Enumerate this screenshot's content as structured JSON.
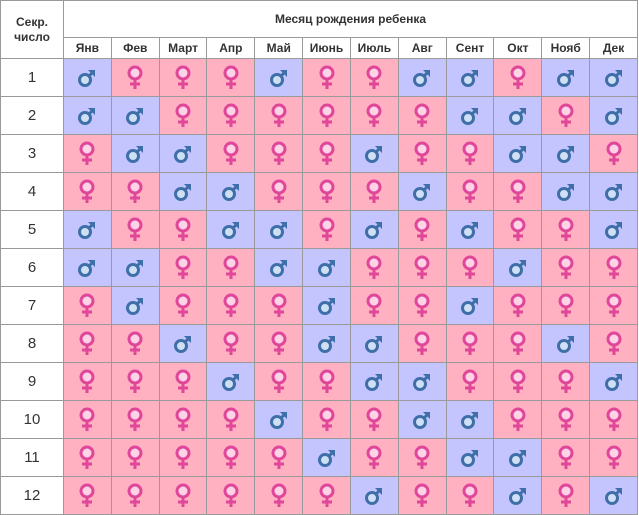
{
  "header": {
    "corner_line1": "Секр.",
    "corner_line2": "число",
    "group_title": "Месяц рождения ребенка"
  },
  "months": [
    "Янв",
    "Фев",
    "Март",
    "Апр",
    "Май",
    "Июнь",
    "Июль",
    "Авг",
    "Сент",
    "Окт",
    "Нояб",
    "Дек"
  ],
  "colors": {
    "girl_cell": "#ffb1c1",
    "boy_cell": "#c4c4ff",
    "female_icon": "#e0479a",
    "male_icon": "#3f6fa8"
  },
  "icons": {
    "girl": "female-symbol-icon",
    "boy": "male-symbol-icon"
  },
  "rows": [
    {
      "number": "1",
      "cells": [
        "b",
        "g",
        "g",
        "g",
        "b",
        "g",
        "g",
        "b",
        "b",
        "g",
        "b",
        "b"
      ]
    },
    {
      "number": "2",
      "cells": [
        "b",
        "b",
        "g",
        "g",
        "g",
        "g",
        "g",
        "g",
        "b",
        "b",
        "g",
        "b"
      ]
    },
    {
      "number": "3",
      "cells": [
        "g",
        "b",
        "b",
        "g",
        "g",
        "g",
        "b",
        "g",
        "g",
        "b",
        "b",
        "g"
      ]
    },
    {
      "number": "4",
      "cells": [
        "g",
        "g",
        "b",
        "b",
        "g",
        "g",
        "g",
        "b",
        "g",
        "g",
        "b",
        "b"
      ]
    },
    {
      "number": "5",
      "cells": [
        "b",
        "g",
        "g",
        "b",
        "b",
        "g",
        "b",
        "g",
        "b",
        "g",
        "g",
        "b"
      ]
    },
    {
      "number": "6",
      "cells": [
        "b",
        "b",
        "g",
        "g",
        "b",
        "b",
        "g",
        "g",
        "g",
        "b",
        "g",
        "g"
      ]
    },
    {
      "number": "7",
      "cells": [
        "g",
        "b",
        "g",
        "g",
        "g",
        "b",
        "g",
        "g",
        "b",
        "g",
        "g",
        "g"
      ]
    },
    {
      "number": "8",
      "cells": [
        "g",
        "g",
        "b",
        "g",
        "g",
        "b",
        "b",
        "g",
        "g",
        "g",
        "b",
        "g"
      ]
    },
    {
      "number": "9",
      "cells": [
        "g",
        "g",
        "g",
        "b",
        "g",
        "g",
        "b",
        "b",
        "g",
        "g",
        "g",
        "b"
      ]
    },
    {
      "number": "10",
      "cells": [
        "g",
        "g",
        "g",
        "g",
        "b",
        "g",
        "g",
        "b",
        "b",
        "g",
        "g",
        "g"
      ]
    },
    {
      "number": "11",
      "cells": [
        "g",
        "g",
        "g",
        "g",
        "g",
        "b",
        "g",
        "g",
        "b",
        "b",
        "g",
        "g"
      ]
    },
    {
      "number": "12",
      "cells": [
        "g",
        "g",
        "g",
        "g",
        "g",
        "g",
        "b",
        "g",
        "g",
        "b",
        "g",
        "b"
      ]
    }
  ]
}
